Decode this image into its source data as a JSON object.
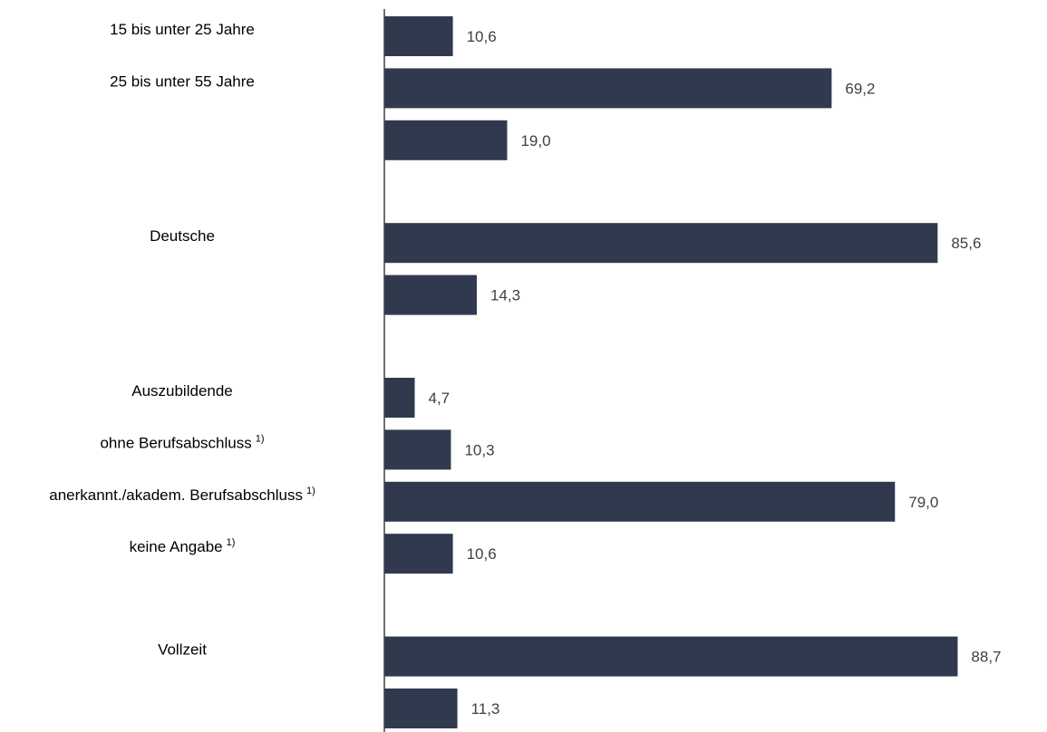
{
  "chart_data": {
    "type": "bar",
    "orientation": "horizontal",
    "categories": [
      {
        "label": "15 bis unter 25 Jahre",
        "sup": ""
      },
      {
        "label": "25 bis unter 55 Jahre",
        "sup": ""
      },
      {
        "label": "",
        "sup": ""
      },
      {
        "label": "Deutsche",
        "sup": ""
      },
      {
        "label": "",
        "sup": ""
      },
      {
        "label": "Auszubildende",
        "sup": ""
      },
      {
        "label": "ohne Berufsabschluss",
        "sup": "1)"
      },
      {
        "label": "anerkannt./akadem. Berufsabschluss",
        "sup": "1)"
      },
      {
        "label": "keine Angabe",
        "sup": "1)"
      },
      {
        "label": "Vollzeit",
        "sup": ""
      },
      {
        "label": "",
        "sup": ""
      }
    ],
    "values": [
      10.6,
      69.2,
      19.0,
      85.6,
      14.3,
      4.7,
      10.3,
      79.0,
      10.6,
      88.7,
      11.3
    ],
    "value_labels": [
      "10,6",
      "69,2",
      "19,0",
      "85,6",
      "14,3",
      "4,7",
      "10,3",
      "79,0",
      "10,6",
      "88,7",
      "11,3"
    ],
    "groups": [
      [
        0,
        1,
        2
      ],
      [
        3,
        4
      ],
      [
        5,
        6,
        7,
        8
      ],
      [
        9,
        10
      ]
    ],
    "bar_color": "#30394e",
    "axis_color": "#404040",
    "xlim": [
      0,
      100
    ],
    "grid": false,
    "legend": "none"
  }
}
